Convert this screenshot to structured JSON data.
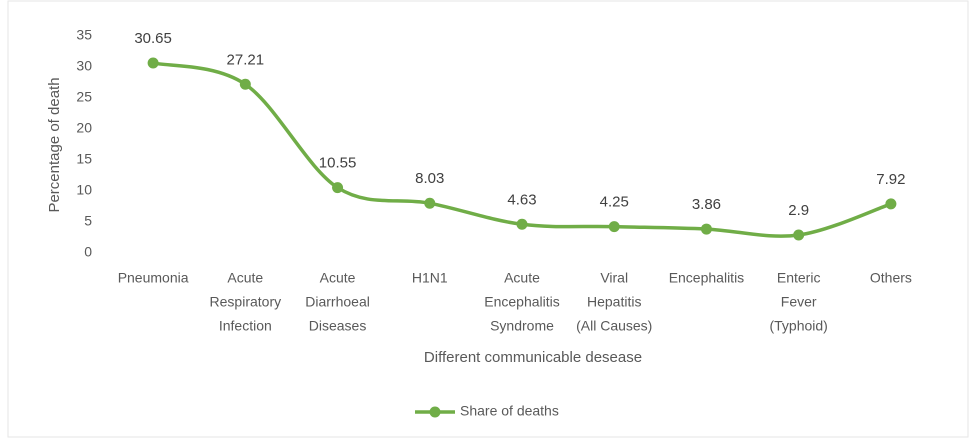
{
  "chart_data": {
    "type": "line",
    "x_label": "Different communicable desease",
    "y_label": "Percentage of death",
    "categories": [
      [
        "Pneumonia"
      ],
      [
        "Acute",
        "Respiratory",
        "Infection"
      ],
      [
        "Acute",
        "Diarrhoeal",
        "Diseases"
      ],
      [
        "H1N1"
      ],
      [
        "Acute",
        "Encephalitis",
        "Syndrome"
      ],
      [
        "Viral",
        "Hepatitis",
        "(All Causes)"
      ],
      [
        "Encephalitis"
      ],
      [
        "Enteric",
        "Fever",
        "(Typhoid)"
      ],
      [
        "Others"
      ]
    ],
    "series": [
      {
        "name": "Share of deaths",
        "color": "#70ad47",
        "values": [
          30.65,
          27.21,
          10.55,
          8.03,
          4.63,
          4.25,
          3.86,
          2.9,
          7.92
        ]
      }
    ],
    "ylim": [
      0,
      35
    ],
    "yticks": [
      0,
      5,
      10,
      15,
      20,
      25,
      30,
      35
    ],
    "grid": false,
    "smooth": true,
    "legend": "bottom"
  }
}
